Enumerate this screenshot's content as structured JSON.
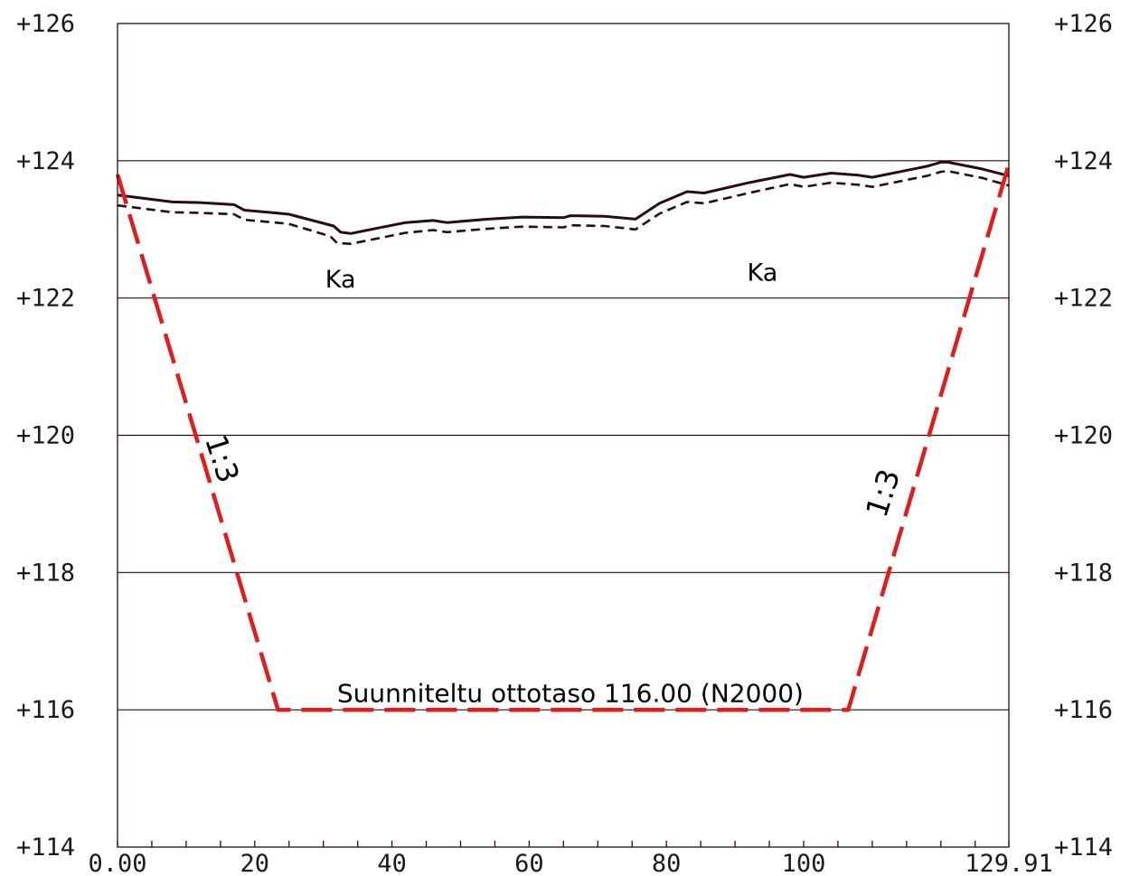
{
  "chart_data": {
    "type": "line",
    "title": "",
    "xlabel": "",
    "ylabel": "",
    "xlim": [
      0,
      129.91
    ],
    "ylim": [
      114,
      126
    ],
    "x_ticks": [
      {
        "value": 0,
        "label": "0.00"
      },
      {
        "value": 20,
        "label": "20"
      },
      {
        "value": 40,
        "label": "40"
      },
      {
        "value": 60,
        "label": "60"
      },
      {
        "value": 80,
        "label": "80"
      },
      {
        "value": 100,
        "label": "100"
      },
      {
        "value": 129.91,
        "label": "129.91"
      }
    ],
    "x_minor_ticks": [
      0,
      5,
      10,
      15,
      20,
      25,
      30,
      35,
      40,
      45,
      50,
      55,
      60,
      65,
      70,
      75,
      80,
      85,
      90,
      95,
      100,
      105,
      110,
      115,
      120,
      125,
      129.91
    ],
    "y_ticks": [
      {
        "value": 126,
        "label": "+126"
      },
      {
        "value": 124,
        "label": "+124"
      },
      {
        "value": 122,
        "label": "+122"
      },
      {
        "value": 120,
        "label": "+120"
      },
      {
        "value": 118,
        "label": "+118"
      },
      {
        "value": 116,
        "label": "+116"
      },
      {
        "value": 114,
        "label": "+114"
      }
    ],
    "grid_y": [
      124,
      122,
      120,
      118,
      116
    ],
    "colors": {
      "ground": "#2b0c0c",
      "design": "#e31b1b",
      "grid": "#2b0c0c"
    },
    "series": [
      {
        "style": "solid",
        "color": "#2b0c0c",
        "points": [
          [
            0,
            123.5
          ],
          [
            8,
            123.4
          ],
          [
            12,
            123.39
          ],
          [
            17,
            123.36
          ],
          [
            18.5,
            123.28
          ],
          [
            23,
            123.24
          ],
          [
            25,
            123.22
          ],
          [
            31.5,
            123.05
          ],
          [
            32.5,
            122.96
          ],
          [
            34,
            122.94
          ],
          [
            38,
            123.02
          ],
          [
            42,
            123.1
          ],
          [
            46,
            123.13
          ],
          [
            48,
            123.1
          ],
          [
            54,
            123.15
          ],
          [
            59,
            123.18
          ],
          [
            65,
            123.17
          ],
          [
            66,
            123.2
          ],
          [
            71,
            123.19
          ],
          [
            75.5,
            123.15
          ],
          [
            79,
            123.38
          ],
          [
            83,
            123.55
          ],
          [
            85.5,
            123.53
          ],
          [
            92,
            123.68
          ],
          [
            98,
            123.8
          ],
          [
            100,
            123.76
          ],
          [
            104,
            123.82
          ],
          [
            108,
            123.79
          ],
          [
            110,
            123.76
          ],
          [
            118,
            123.92
          ],
          [
            120,
            123.98
          ],
          [
            121,
            123.98
          ],
          [
            126,
            123.88
          ],
          [
            129.91,
            123.78
          ]
        ]
      },
      {
        "style": "dashed",
        "color": "#2b0c0c",
        "points": [
          [
            0,
            123.35
          ],
          [
            8,
            123.25
          ],
          [
            12,
            123.24
          ],
          [
            17,
            123.22
          ],
          [
            18.5,
            123.14
          ],
          [
            23,
            123.1
          ],
          [
            25,
            123.08
          ],
          [
            31,
            122.9
          ],
          [
            32,
            122.8
          ],
          [
            34,
            122.79
          ],
          [
            38,
            122.87
          ],
          [
            42,
            122.95
          ],
          [
            46,
            122.99
          ],
          [
            48,
            122.96
          ],
          [
            54,
            123.01
          ],
          [
            59,
            123.04
          ],
          [
            65,
            123.03
          ],
          [
            66,
            123.06
          ],
          [
            71,
            123.05
          ],
          [
            75.5,
            123.0
          ],
          [
            79,
            123.23
          ],
          [
            83,
            123.4
          ],
          [
            85.5,
            123.38
          ],
          [
            92,
            123.53
          ],
          [
            98,
            123.66
          ],
          [
            100,
            123.62
          ],
          [
            104,
            123.68
          ],
          [
            108,
            123.65
          ],
          [
            110,
            123.62
          ],
          [
            118,
            123.78
          ],
          [
            120,
            123.84
          ],
          [
            121,
            123.85
          ],
          [
            126,
            123.75
          ],
          [
            129.91,
            123.64
          ]
        ]
      },
      {
        "style": "dashed",
        "color": "#e31b1b",
        "points": [
          [
            0,
            123.8
          ],
          [
            23.4,
            116.0
          ],
          [
            106.5,
            116.0
          ],
          [
            129.91,
            123.95
          ]
        ]
      }
    ],
    "annotations": [
      {
        "text": "Ka",
        "x": 32.5,
        "y": 122.25,
        "rotate": 0,
        "color": "#000000"
      },
      {
        "text": "Ka",
        "x": 94,
        "y": 122.35,
        "rotate": 0,
        "color": "#000000"
      },
      {
        "text": "1:3",
        "x": 15,
        "y": 119.65,
        "rotate": 72,
        "color": "#000000"
      },
      {
        "text": "1:3",
        "x": 111.8,
        "y": 119.15,
        "rotate": -72,
        "color": "#000000"
      },
      {
        "text": "Suunniteltu ottotaso 116.00 (N2000)",
        "x": 66,
        "y": 116.22,
        "rotate": 0,
        "color": "#000000"
      }
    ]
  }
}
